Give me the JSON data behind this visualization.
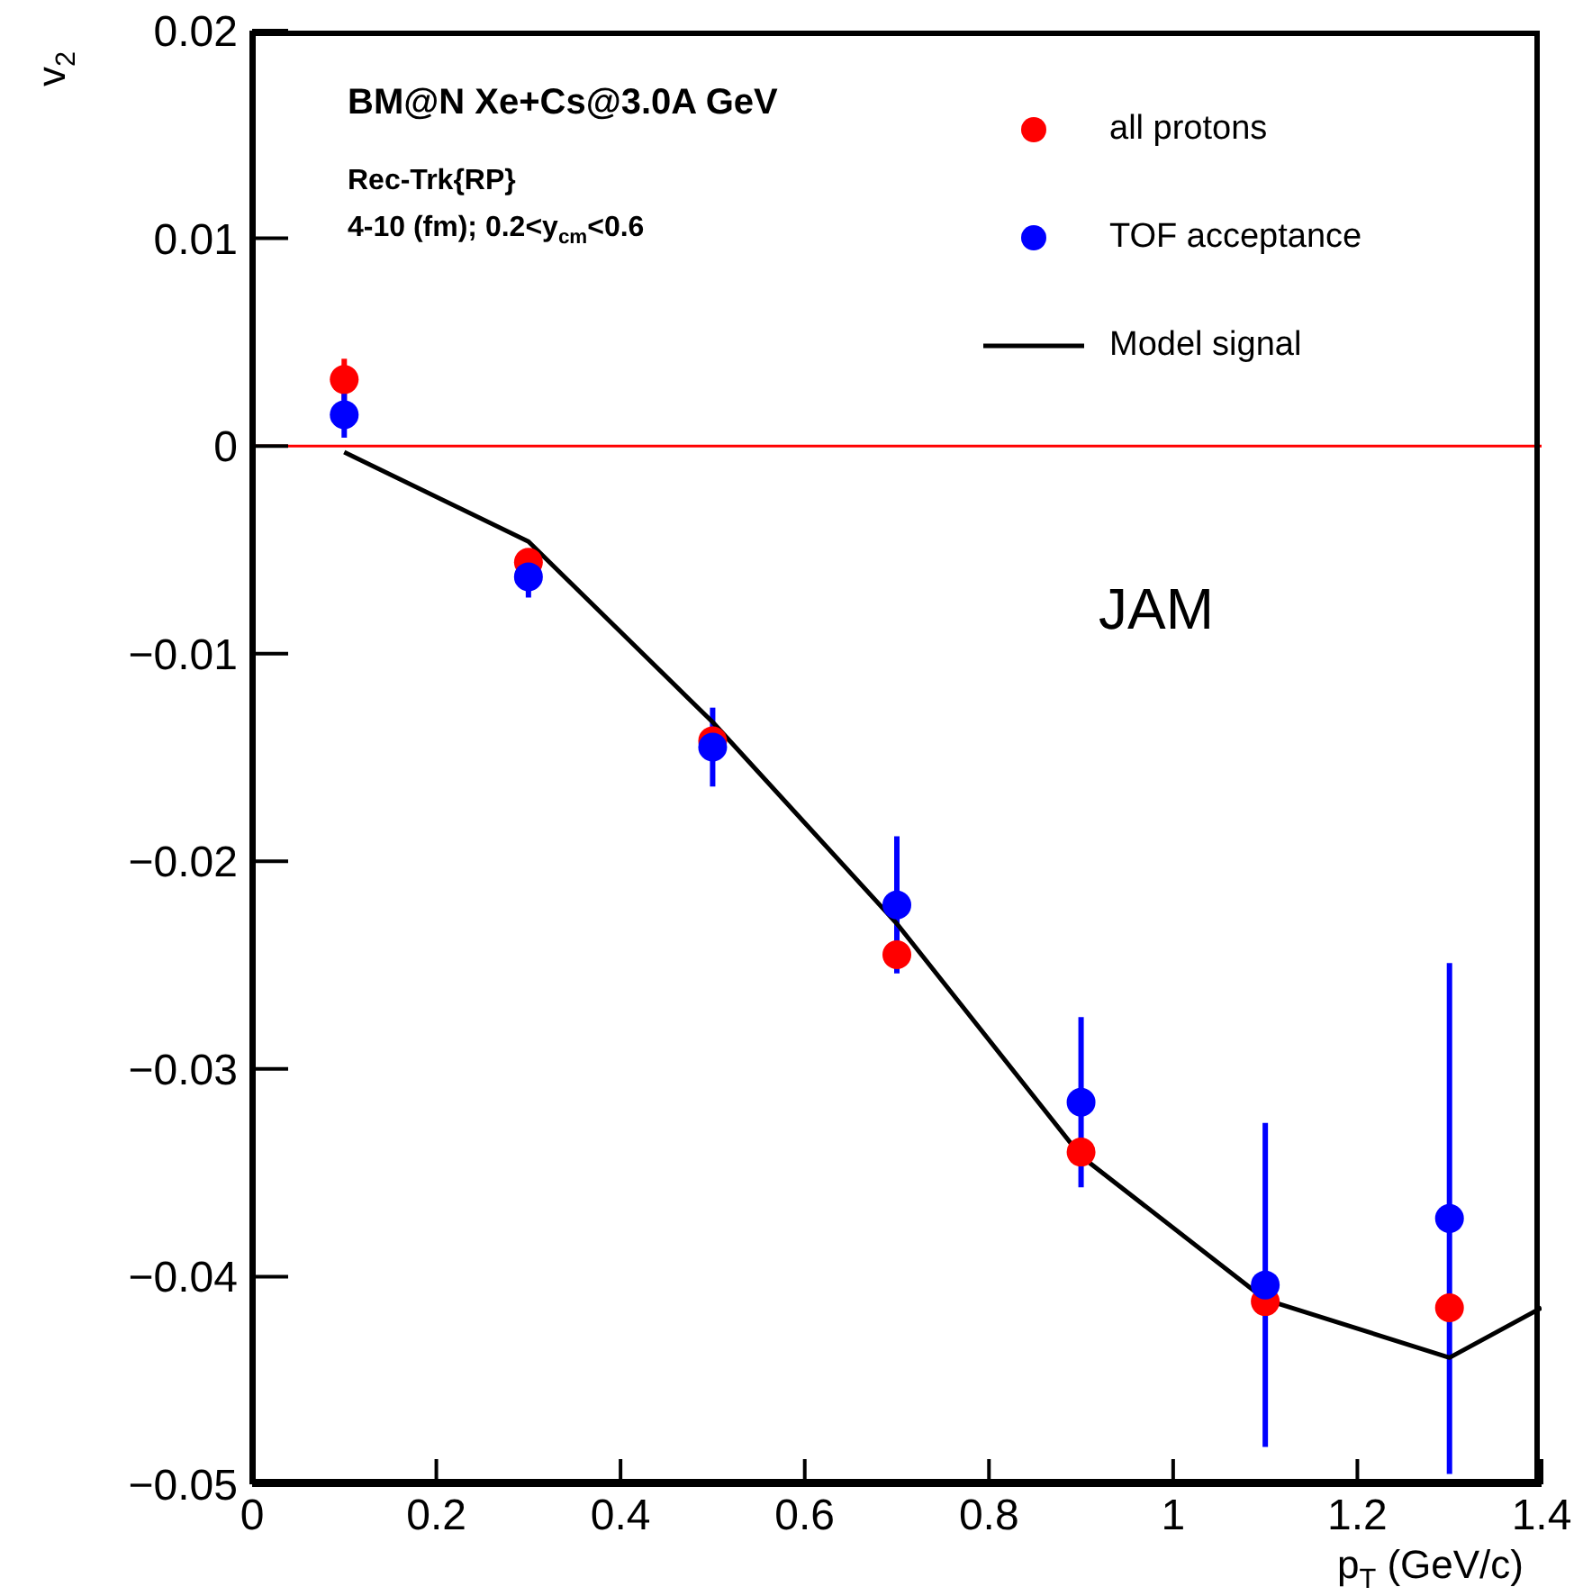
{
  "chart_data": {
    "type": "scatter",
    "xlabel": "p$_{T}$ (GeV/c)",
    "ylabel": "v$_{2}$",
    "annotations": [
      "BM@N Xe+Cs@3.0A GeV",
      "Rec-Trk{RP}",
      "4-10 (fm); 0.2<y$_{cm}$<0.6",
      "JAM"
    ],
    "xlim": [
      0,
      1.4
    ],
    "xticks": [
      0,
      0.2,
      0.4,
      0.6,
      0.8,
      1,
      1.2,
      1.4
    ],
    "ylim": [
      -0.05,
      0.02
    ],
    "yticks": [
      {
        "value": -0.05,
        "label": "−0.05"
      },
      {
        "value": -0.04,
        "label": "−0.04"
      },
      {
        "value": -0.03,
        "label": "−0.03"
      },
      {
        "value": -0.02,
        "label": "−0.02"
      },
      {
        "value": -0.01,
        "label": "−0.01"
      },
      0,
      0.01,
      0.02
    ],
    "grid": false,
    "legend": "top right",
    "ref_lines": [
      {
        "axis": "y",
        "value": 0,
        "color": "#ff0000"
      }
    ],
    "series": [
      {
        "name": "all protons",
        "marker": "circle",
        "color": "#ff0000",
        "x": [
          0.1,
          0.3,
          0.5,
          0.7,
          0.9,
          1.1,
          1.3
        ],
        "values": [
          0.0032,
          -0.0056,
          -0.0142,
          -0.0245,
          -0.034,
          -0.0412,
          -0.0415
        ],
        "errors": [
          0.001,
          null,
          null,
          null,
          null,
          null,
          null
        ]
      },
      {
        "name": "TOF acceptance",
        "marker": "circle",
        "color": "#0000ff",
        "x": [
          0.1,
          0.3,
          0.5,
          0.7,
          0.9,
          1.1,
          1.3
        ],
        "values": [
          0.0015,
          -0.0063,
          -0.0145,
          -0.0221,
          -0.0316,
          -0.0404,
          -0.0372
        ],
        "errors": [
          0.0011,
          0.001,
          0.0019,
          0.0033,
          0.0041,
          0.0078,
          0.0123
        ]
      },
      {
        "name": "Model signal",
        "type": "line",
        "marker": "none",
        "color": "#000000",
        "line_style": "solid",
        "x": [
          0.1,
          0.3,
          0.5,
          0.7,
          0.9,
          1.1,
          1.3,
          1.4
        ],
        "values": [
          -0.0003,
          -0.0046,
          -0.0133,
          -0.023,
          -0.0342,
          -0.0411,
          -0.0439,
          -0.0415
        ]
      }
    ]
  }
}
